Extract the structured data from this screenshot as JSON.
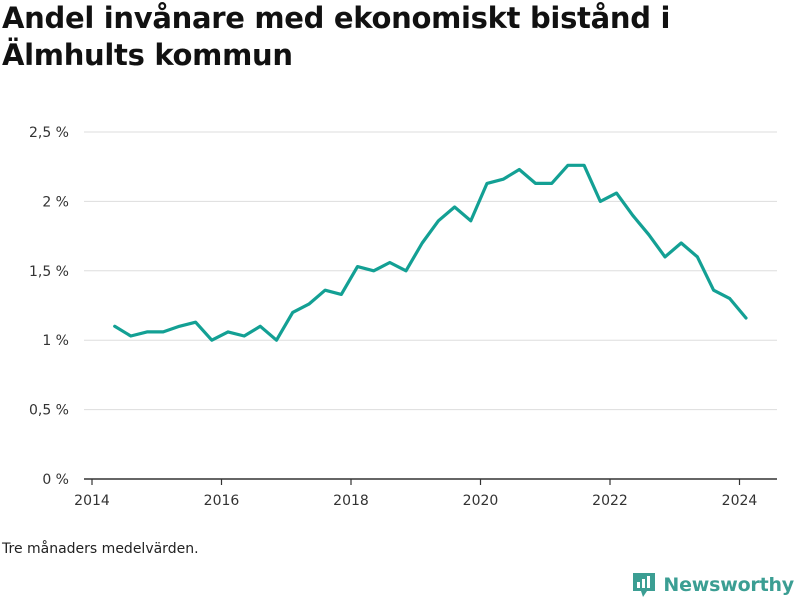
{
  "header": {
    "title": "Andel invånare med ekonomiskt bistånd i Älmhults kommun"
  },
  "footnote": "Tre månaders medelvärden.",
  "brand": {
    "name": "Newsworthy",
    "color": "#3b9e93"
  },
  "chart_data": {
    "type": "line",
    "title": "Andel invånare med ekonomiskt bistånd i Älmhults kommun",
    "xlabel": "",
    "ylabel": "",
    "x_ticks": [
      "2014",
      "2016",
      "2018",
      "2020",
      "2022",
      "2024"
    ],
    "y_ticks": [
      "0 %",
      "0,5 %",
      "1 %",
      "1,5 %",
      "2 %",
      "2,5 %"
    ],
    "ylim": [
      0,
      2.5
    ],
    "xlim": [
      2014.0,
      2025.05
    ],
    "grid": true,
    "line_color": "#13a094",
    "series": [
      {
        "x": [
          2014.35,
          2014.6,
          2014.85,
          2015.1,
          2015.35,
          2015.6,
          2015.85,
          2016.1,
          2016.35,
          2016.6,
          2016.85,
          2017.1,
          2017.35,
          2017.6,
          2017.85,
          2018.1,
          2018.35,
          2018.6,
          2018.85,
          2019.1,
          2019.35,
          2019.6,
          2019.85,
          2020.1,
          2020.35,
          2020.6,
          2020.85,
          2021.1,
          2021.35,
          2021.6,
          2021.85,
          2022.1,
          2022.35,
          2022.6,
          2022.85,
          2023.1,
          2023.35,
          2023.6,
          2023.85,
          2024.1
        ],
        "values": [
          1.1,
          1.03,
          1.06,
          1.06,
          1.1,
          1.13,
          1.0,
          1.06,
          1.03,
          1.1,
          1.0,
          1.2,
          1.26,
          1.36,
          1.33,
          1.53,
          1.5,
          1.56,
          1.5,
          1.7,
          1.86,
          1.96,
          1.86,
          2.13,
          2.16,
          2.23,
          2.13,
          2.13,
          2.26,
          2.26,
          2.0,
          2.06,
          1.9,
          1.76,
          1.6,
          1.7,
          1.6,
          1.36,
          1.3,
          1.16
        ]
      }
    ]
  }
}
